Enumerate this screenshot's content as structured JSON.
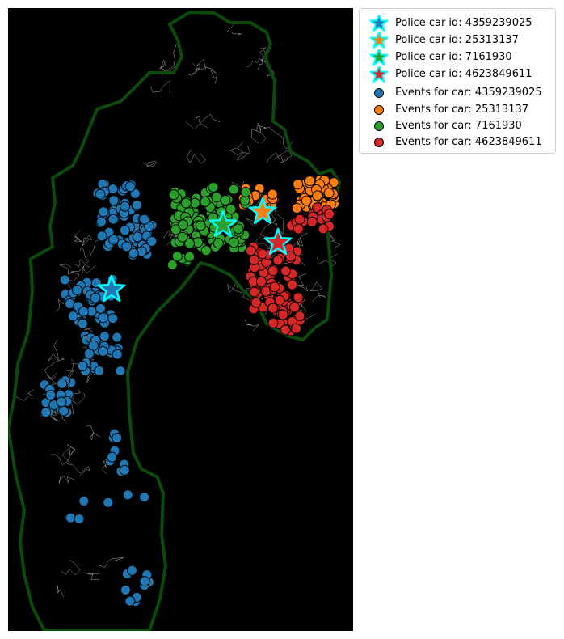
{
  "map": {
    "background": "#000000",
    "boundary_color": "#0b4a0b",
    "road_color": "#cfcfcf",
    "marker_outline": "#00ffff"
  },
  "legend": {
    "items": [
      {
        "label": "Police car id: 4359239025",
        "kind": "star",
        "color": "#1f77b4"
      },
      {
        "label": "Police car id: 25313137",
        "kind": "star",
        "color": "#ff7f0e"
      },
      {
        "label": "Police car id: 7161930",
        "kind": "star",
        "color": "#2ca02c"
      },
      {
        "label": "Police car id: 4623849611",
        "kind": "star",
        "color": "#d62728"
      },
      {
        "label": "Events for car: 4359239025",
        "kind": "dot",
        "color": "#1f77b4"
      },
      {
        "label": "Events for car: 25313137",
        "kind": "dot",
        "color": "#ff7f0e"
      },
      {
        "label": "Events for car: 7161930",
        "kind": "dot",
        "color": "#2ca02c"
      },
      {
        "label": "Events for car: 4623849611",
        "kind": "dot",
        "color": "#d62728"
      }
    ]
  }
}
